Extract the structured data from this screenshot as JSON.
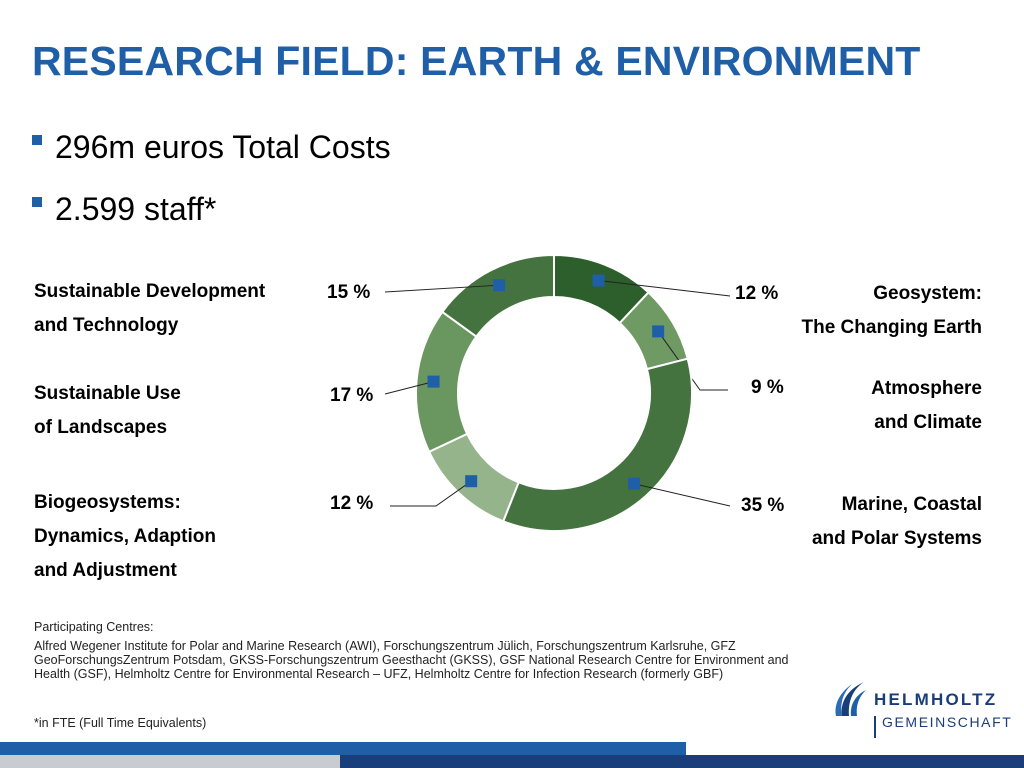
{
  "title": "RESEARCH FIELD: EARTH & ENVIRONMENT",
  "bullets": [
    "296m euros Total Costs",
    "2.599 staff*"
  ],
  "chart_data": {
    "type": "pie",
    "variant": "donut",
    "start": "top, clockwise",
    "slices": [
      {
        "label_lines": [
          "Geosystem:",
          "The Changing Earth"
        ],
        "value": 12,
        "value_label": "12 %",
        "color": "#2d5f2c"
      },
      {
        "label_lines": [
          "Atmosphere",
          "and Climate"
        ],
        "value": 9,
        "value_label": "9 %",
        "color": "#6f9a63"
      },
      {
        "label_lines": [
          "Marine, Coastal",
          "and Polar Systems"
        ],
        "value": 35,
        "value_label": "35 %",
        "color": "#44733f"
      },
      {
        "label_lines": [
          "Biogeosystems:",
          "Dynamics, Adaption",
          "and Adjustment"
        ],
        "value": 12,
        "value_label": "12 %",
        "color": "#95b48b"
      },
      {
        "label_lines": [
          "Sustainable Use",
          "of Landscapes"
        ],
        "value": 17,
        "value_label": "17 %",
        "color": "#6a9660"
      },
      {
        "label_lines": [
          "Sustainable Development",
          "and Technology"
        ],
        "value": 15,
        "value_label": "15 %",
        "color": "#44733f"
      }
    ],
    "marker_color": "#1f5fa8"
  },
  "footer": {
    "participating_heading": "Participating Centres:",
    "participating_text": "Alfred Wegener Institute for Polar and Marine Research (AWI), Forschungszentrum Jülich, Forschungszentrum Karlsruhe, GFZ GeoForschungsZentrum Potsdam, GKSS-Forschungszentrum Geesthacht (GKSS), GSF National Research Centre for Environment and Health (GSF), Helmholtz Centre for Environmental Research – UFZ, Helmholtz Centre for Infection Research (formerly GBF)",
    "fte_note": "*in FTE (Full Time Equivalents)"
  },
  "logo": {
    "line1": "HELMHOLTZ",
    "line2": "GEMEINSCHAFT",
    "icon": "helmholtz-logo-icon"
  },
  "colors": {
    "accent": "#1f5fa8",
    "logo_blue": "#1a3e7a"
  }
}
